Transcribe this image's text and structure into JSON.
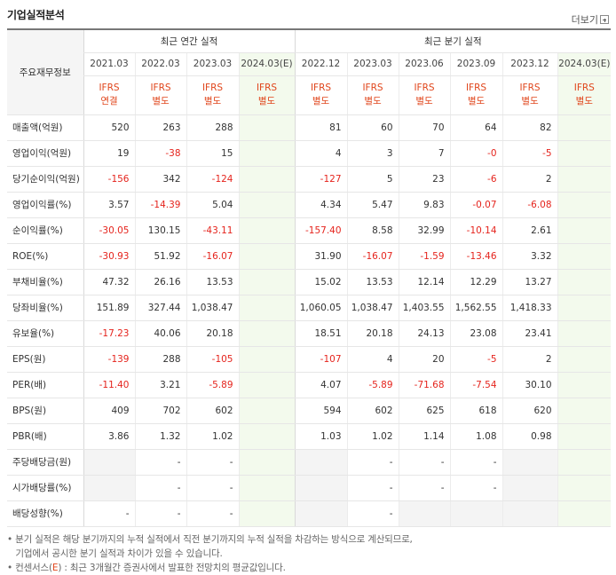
{
  "title": "기업실적분석",
  "more_label": "더보기",
  "row_header": "주요재무정보",
  "groups": {
    "annual": "최근 연간 실적",
    "quarterly": "최근 분기 실적"
  },
  "columns": [
    {
      "date": "2021.03",
      "ifrs1": "IFRS",
      "ifrs2": "연결",
      "est": false
    },
    {
      "date": "2022.03",
      "ifrs1": "IFRS",
      "ifrs2": "별도",
      "est": false
    },
    {
      "date": "2023.03",
      "ifrs1": "IFRS",
      "ifrs2": "별도",
      "est": false
    },
    {
      "date": "2024.03(E)",
      "ifrs1": "IFRS",
      "ifrs2": "별도",
      "est": true
    },
    {
      "date": "2022.12",
      "ifrs1": "IFRS",
      "ifrs2": "별도",
      "est": false
    },
    {
      "date": "2023.03",
      "ifrs1": "IFRS",
      "ifrs2": "별도",
      "est": false
    },
    {
      "date": "2023.06",
      "ifrs1": "IFRS",
      "ifrs2": "별도",
      "est": false
    },
    {
      "date": "2023.09",
      "ifrs1": "IFRS",
      "ifrs2": "별도",
      "est": false
    },
    {
      "date": "2023.12",
      "ifrs1": "IFRS",
      "ifrs2": "별도",
      "est": false
    },
    {
      "date": "2024.03(E)",
      "ifrs1": "IFRS",
      "ifrs2": "별도",
      "est": true
    }
  ],
  "rows": [
    {
      "label": "매출액(억원)",
      "values": [
        "520",
        "263",
        "288",
        "",
        "81",
        "60",
        "70",
        "64",
        "82",
        ""
      ]
    },
    {
      "label": "영업이익(억원)",
      "values": [
        "19",
        "-38",
        "15",
        "",
        "4",
        "3",
        "7",
        "-0",
        "-5",
        ""
      ]
    },
    {
      "label": "당기순이익(억원)",
      "values": [
        "-156",
        "342",
        "-124",
        "",
        "-127",
        "5",
        "23",
        "-6",
        "2",
        ""
      ]
    },
    {
      "label": "영업이익률(%)",
      "values": [
        "3.57",
        "-14.39",
        "5.04",
        "",
        "4.34",
        "5.47",
        "9.83",
        "-0.07",
        "-6.08",
        ""
      ]
    },
    {
      "label": "순이익률(%)",
      "values": [
        "-30.05",
        "130.15",
        "-43.11",
        "",
        "-157.40",
        "8.58",
        "32.99",
        "-10.14",
        "2.61",
        ""
      ]
    },
    {
      "label": "ROE(%)",
      "values": [
        "-30.93",
        "51.92",
        "-16.07",
        "",
        "31.90",
        "-16.07",
        "-1.59",
        "-13.46",
        "3.32",
        ""
      ]
    },
    {
      "label": "부채비율(%)",
      "values": [
        "47.32",
        "26.16",
        "13.53",
        "",
        "15.02",
        "13.53",
        "12.14",
        "12.29",
        "13.27",
        ""
      ]
    },
    {
      "label": "당좌비율(%)",
      "values": [
        "151.89",
        "327.44",
        "1,038.47",
        "",
        "1,060.05",
        "1,038.47",
        "1,403.55",
        "1,562.55",
        "1,418.33",
        ""
      ]
    },
    {
      "label": "유보율(%)",
      "values": [
        "-17.23",
        "40.06",
        "20.18",
        "",
        "18.51",
        "20.18",
        "24.13",
        "23.08",
        "23.41",
        ""
      ]
    },
    {
      "label": "EPS(원)",
      "values": [
        "-139",
        "288",
        "-105",
        "",
        "-107",
        "4",
        "20",
        "-5",
        "2",
        ""
      ]
    },
    {
      "label": "PER(배)",
      "values": [
        "-11.40",
        "3.21",
        "-5.89",
        "",
        "4.07",
        "-5.89",
        "-71.68",
        "-7.54",
        "30.10",
        ""
      ]
    },
    {
      "label": "BPS(원)",
      "values": [
        "409",
        "702",
        "602",
        "",
        "594",
        "602",
        "625",
        "618",
        "620",
        ""
      ]
    },
    {
      "label": "PBR(배)",
      "values": [
        "3.86",
        "1.32",
        "1.02",
        "",
        "1.03",
        "1.02",
        "1.14",
        "1.08",
        "0.98",
        ""
      ]
    },
    {
      "label": "주당배당금(원)",
      "values": [
        null,
        "-",
        "-",
        "",
        null,
        "-",
        "-",
        "-",
        null,
        ""
      ]
    },
    {
      "label": "시가배당률(%)",
      "values": [
        null,
        "-",
        "-",
        "",
        null,
        "-",
        "-",
        "-",
        null,
        ""
      ]
    },
    {
      "label": "배당성향(%)",
      "values": [
        "-",
        "-",
        "-",
        "",
        null,
        "-",
        null,
        null,
        null,
        ""
      ]
    }
  ],
  "notes": {
    "line1": "• 분기 실적은 해당 분기까지의 누적 실적에서 직전 분기까지의 누적 실적을 차감하는 방식으로 계산되므로,",
    "line2": "   기업에서 공시한 분기 실적과 차이가 있을 수 있습니다.",
    "line3_pre": "• 컨센서스(",
    "line3_e": "E",
    "line3_post": ") : 최근 3개월간 증권사에서 발표한 전망치의 평균값입니다."
  },
  "colors": {
    "negative": "#e5241d",
    "ifrs": "#e0451b",
    "estimate_bg": "#f3faed",
    "empty_bg": "#f4f4f4"
  }
}
